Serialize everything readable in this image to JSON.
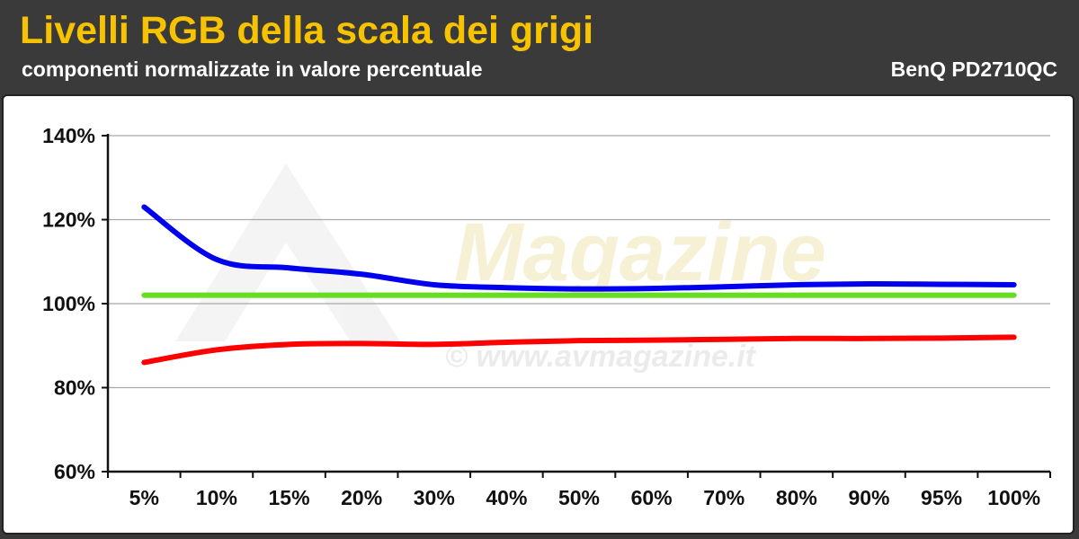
{
  "header": {
    "title": "Livelli RGB della scala dei grigi",
    "subtitle": "componenti normalizzate in valore percentuale",
    "monitor": "BenQ PD2710QC"
  },
  "watermark": {
    "brand": "Magazine",
    "site": "© www.avmagazine.it"
  },
  "chart_data": {
    "type": "line",
    "title": "Livelli RGB della scala dei grigi",
    "subtitle": "componenti normalizzate in valore percentuale",
    "categories": [
      "5%",
      "10%",
      "15%",
      "20%",
      "30%",
      "40%",
      "50%",
      "60%",
      "70%",
      "80%",
      "90%",
      "95%",
      "100%"
    ],
    "y_ticks": [
      "60%",
      "80%",
      "100%",
      "120%",
      "140%"
    ],
    "ylim": [
      60,
      140
    ],
    "grid": true,
    "series": [
      {
        "color": "#66dd22",
        "values": [
          102,
          102,
          102,
          102,
          102,
          102,
          102,
          102,
          102,
          102,
          102,
          102,
          102
        ]
      },
      {
        "color": "#ff0000",
        "values": [
          86,
          89,
          90.3,
          90.5,
          90.3,
          90.8,
          91.2,
          91.3,
          91.5,
          91.7,
          91.7,
          91.8,
          92
        ]
      },
      {
        "color": "#0000ee",
        "values": [
          123,
          110.5,
          108.5,
          107,
          104.5,
          103.8,
          103.5,
          103.6,
          104,
          104.5,
          104.7,
          104.6,
          104.5
        ]
      }
    ]
  }
}
